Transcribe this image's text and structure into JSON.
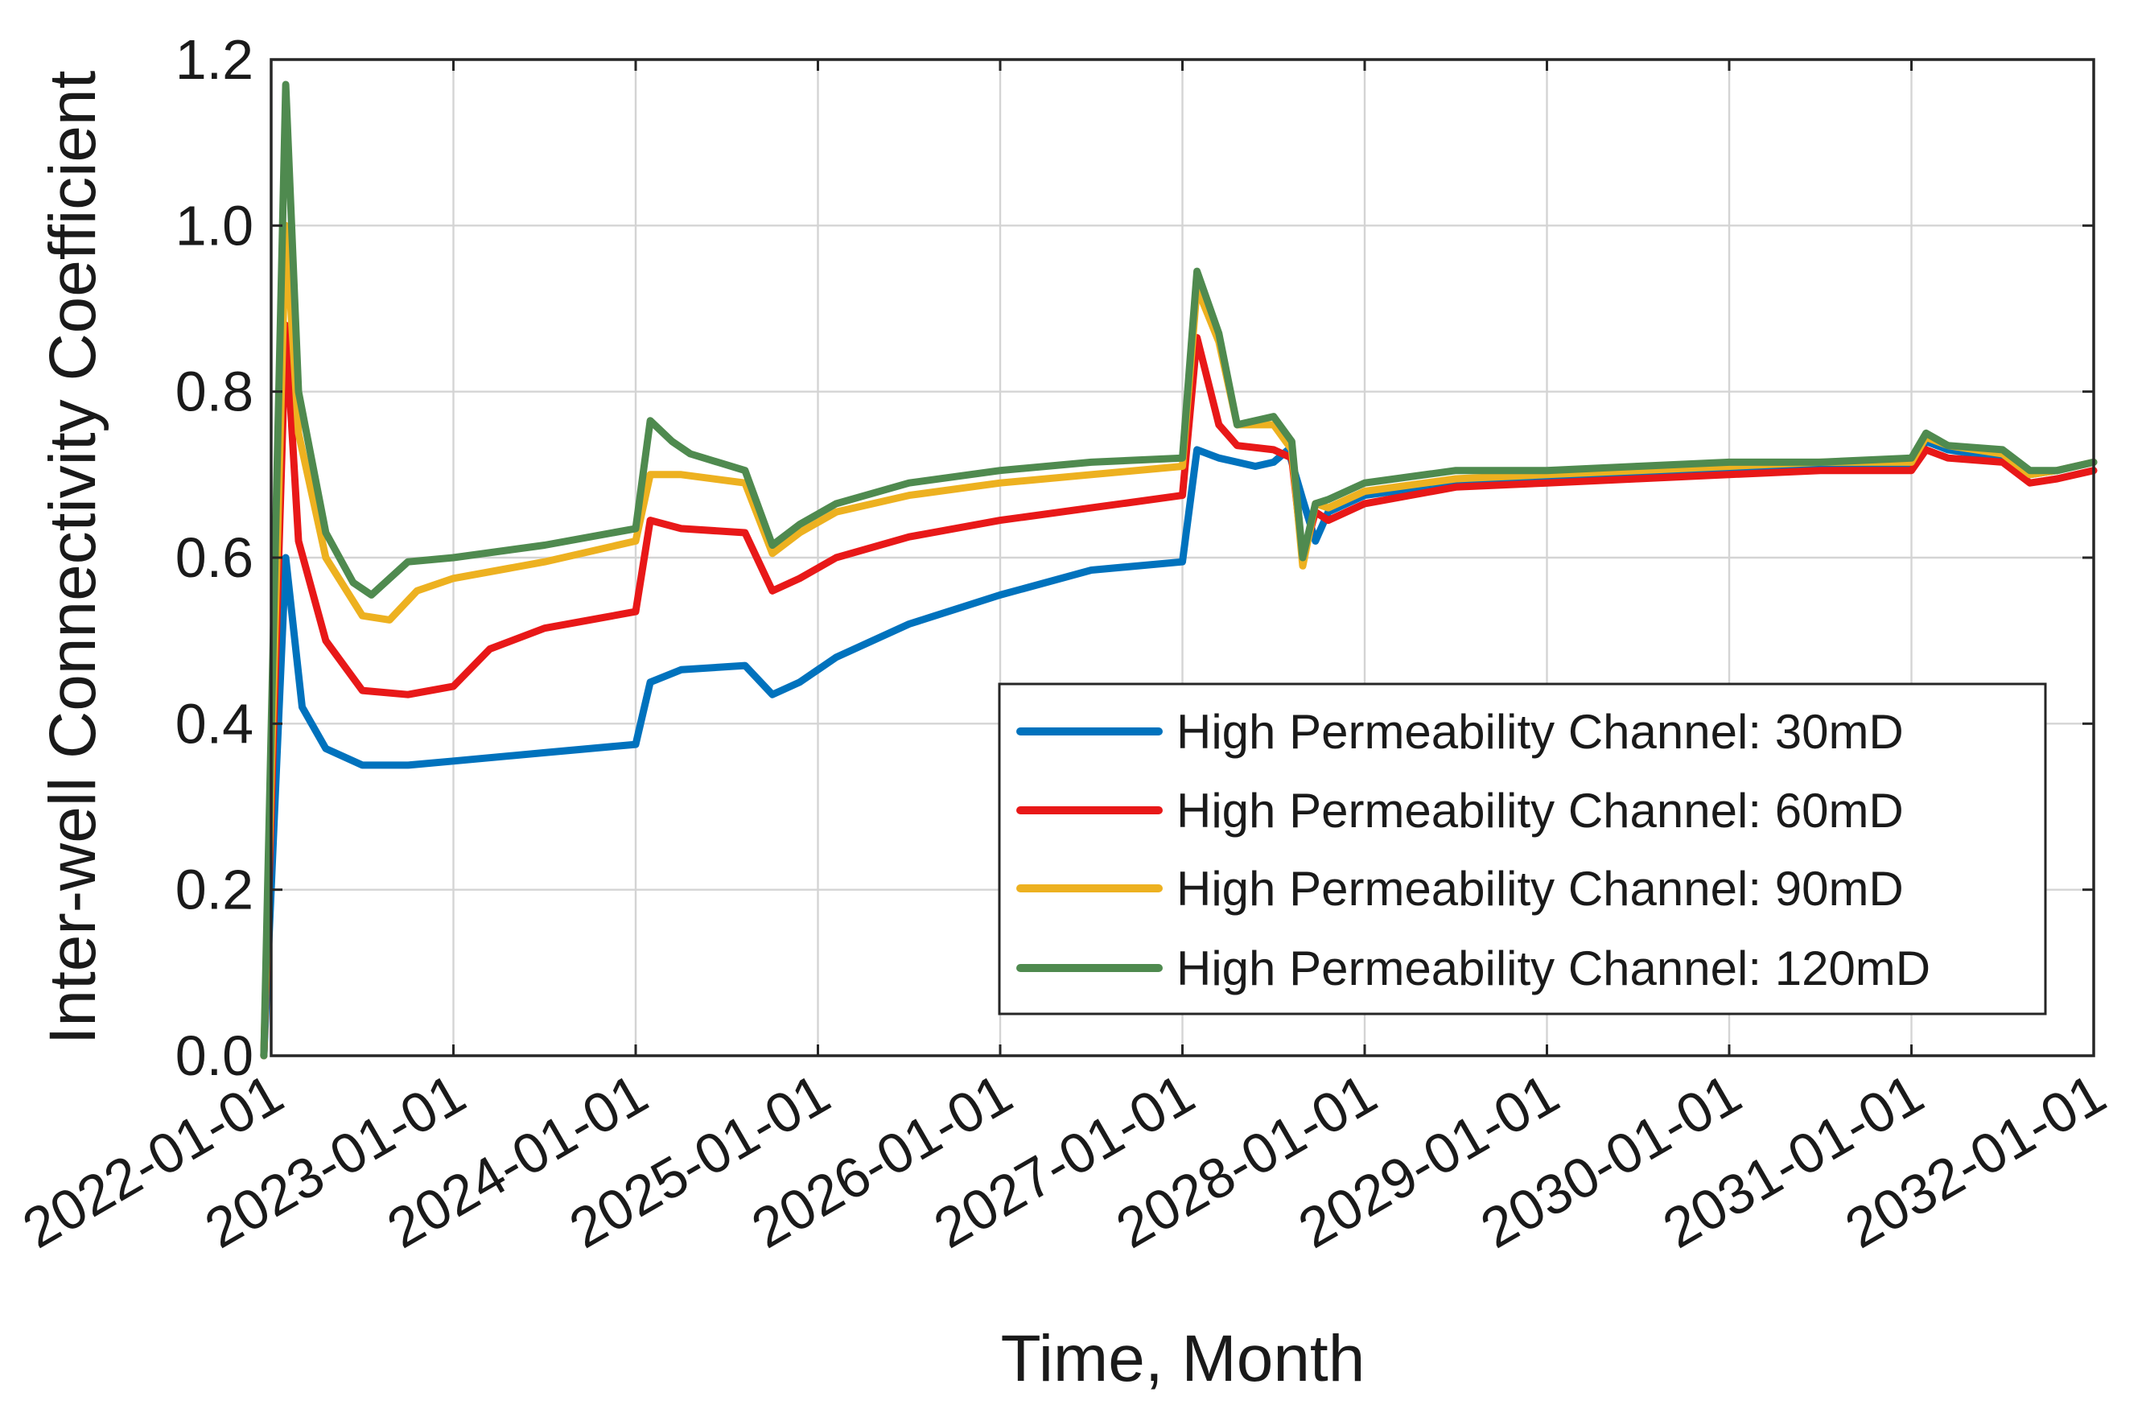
{
  "chart_data": {
    "type": "line",
    "title": "",
    "xlabel": "Time, Month",
    "ylabel": "Inter-well Connectivity Coefficient",
    "xlim": [
      "2022-01-01",
      "2032-01-01"
    ],
    "ylim": [
      0.0,
      1.2
    ],
    "grid": true,
    "legend_position": "bottom-right",
    "x_ticks": [
      "2022-01-01",
      "2023-01-01",
      "2024-01-01",
      "2025-01-01",
      "2026-01-01",
      "2027-01-01",
      "2028-01-01",
      "2029-01-01",
      "2030-01-01",
      "2031-01-01",
      "2032-01-01"
    ],
    "y_ticks": [
      "0.0",
      "0.2",
      "0.4",
      "0.6",
      "0.8",
      "1.0",
      "1.2"
    ],
    "x_unit": "years since 2022-01-01",
    "series": [
      {
        "name": "High Permeability Channel: 30mD",
        "color": "#0072BD",
        "x": [
          -0.04,
          0.08,
          0.17,
          0.3,
          0.5,
          0.75,
          1.0,
          1.5,
          2.0,
          2.08,
          2.25,
          2.6,
          2.75,
          2.9,
          3.1,
          3.5,
          4.0,
          4.5,
          5.0,
          5.08,
          5.2,
          5.4,
          5.5,
          5.58,
          5.66,
          5.73,
          5.8,
          6.0,
          6.5,
          7.0,
          7.5,
          8.0,
          8.5,
          9.0,
          9.08,
          9.2,
          9.5,
          9.65,
          9.8,
          10.0
        ],
        "y": [
          0.0,
          0.6,
          0.42,
          0.37,
          0.35,
          0.35,
          0.355,
          0.365,
          0.375,
          0.45,
          0.465,
          0.47,
          0.435,
          0.45,
          0.48,
          0.52,
          0.555,
          0.585,
          0.595,
          0.73,
          0.72,
          0.71,
          0.715,
          0.73,
          0.67,
          0.62,
          0.655,
          0.675,
          0.69,
          0.695,
          0.7,
          0.705,
          0.71,
          0.71,
          0.74,
          0.73,
          0.72,
          0.7,
          0.705,
          0.715
        ]
      },
      {
        "name": "High Permeability Channel: 60mD",
        "color": "#E81818",
        "x": [
          -0.04,
          0.08,
          0.15,
          0.3,
          0.5,
          0.75,
          1.0,
          1.2,
          1.5,
          2.0,
          2.08,
          2.25,
          2.6,
          2.75,
          2.9,
          3.1,
          3.5,
          4.0,
          4.5,
          5.0,
          5.08,
          5.2,
          5.3,
          5.5,
          5.6,
          5.66,
          5.73,
          5.8,
          6.0,
          6.5,
          7.0,
          7.5,
          8.0,
          8.5,
          9.0,
          9.08,
          9.2,
          9.5,
          9.65,
          9.8,
          10.0
        ],
        "y": [
          0.0,
          0.88,
          0.62,
          0.5,
          0.44,
          0.435,
          0.445,
          0.49,
          0.515,
          0.535,
          0.645,
          0.635,
          0.63,
          0.56,
          0.575,
          0.6,
          0.625,
          0.645,
          0.66,
          0.675,
          0.865,
          0.76,
          0.735,
          0.73,
          0.72,
          0.6,
          0.655,
          0.645,
          0.665,
          0.685,
          0.69,
          0.695,
          0.7,
          0.705,
          0.705,
          0.73,
          0.72,
          0.715,
          0.69,
          0.695,
          0.705
        ]
      },
      {
        "name": "High Permeability Channel: 90mD",
        "color": "#EDB120",
        "x": [
          -0.04,
          0.08,
          0.15,
          0.3,
          0.5,
          0.65,
          0.8,
          1.0,
          1.5,
          2.0,
          2.08,
          2.25,
          2.6,
          2.75,
          2.9,
          3.1,
          3.5,
          4.0,
          4.5,
          5.0,
          5.08,
          5.2,
          5.3,
          5.5,
          5.6,
          5.66,
          5.73,
          5.8,
          6.0,
          6.5,
          7.0,
          7.5,
          8.0,
          8.5,
          9.0,
          9.08,
          9.2,
          9.5,
          9.65,
          9.8,
          10.0
        ],
        "y": [
          0.0,
          1.0,
          0.75,
          0.6,
          0.53,
          0.525,
          0.56,
          0.575,
          0.595,
          0.62,
          0.7,
          0.7,
          0.69,
          0.605,
          0.63,
          0.655,
          0.675,
          0.69,
          0.7,
          0.71,
          0.925,
          0.86,
          0.76,
          0.76,
          0.73,
          0.59,
          0.665,
          0.66,
          0.68,
          0.695,
          0.7,
          0.705,
          0.71,
          0.715,
          0.715,
          0.745,
          0.735,
          0.725,
          0.7,
          0.705,
          0.715
        ]
      },
      {
        "name": "High Permeability Channel: 120mD",
        "color": "#4F8A4F",
        "x": [
          -0.04,
          0.08,
          0.15,
          0.3,
          0.45,
          0.55,
          0.75,
          1.0,
          1.5,
          2.0,
          2.08,
          2.2,
          2.3,
          2.6,
          2.75,
          2.9,
          3.1,
          3.5,
          4.0,
          4.5,
          5.0,
          5.08,
          5.2,
          5.3,
          5.5,
          5.6,
          5.66,
          5.73,
          5.8,
          6.0,
          6.5,
          7.0,
          7.5,
          8.0,
          8.5,
          9.0,
          9.08,
          9.2,
          9.5,
          9.65,
          9.8,
          10.0
        ],
        "y": [
          0.0,
          1.17,
          0.8,
          0.63,
          0.57,
          0.555,
          0.595,
          0.6,
          0.615,
          0.635,
          0.765,
          0.74,
          0.725,
          0.705,
          0.615,
          0.64,
          0.665,
          0.69,
          0.705,
          0.715,
          0.72,
          0.945,
          0.87,
          0.76,
          0.77,
          0.74,
          0.6,
          0.665,
          0.67,
          0.69,
          0.705,
          0.705,
          0.71,
          0.715,
          0.715,
          0.72,
          0.75,
          0.735,
          0.73,
          0.705,
          0.705,
          0.715
        ]
      }
    ]
  }
}
